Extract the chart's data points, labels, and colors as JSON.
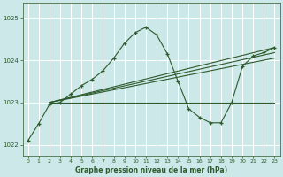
{
  "title": "Graphe pression niveau de la mer (hPa)",
  "bg_color": "#cce8e8",
  "grid_color": "#ffffff",
  "line_color": "#2d5a2d",
  "x_ticks": [
    0,
    1,
    2,
    3,
    4,
    5,
    6,
    7,
    8,
    9,
    10,
    11,
    12,
    13,
    14,
    15,
    16,
    17,
    18,
    19,
    20,
    21,
    22,
    23
  ],
  "y_ticks": [
    1022,
    1023,
    1024,
    1025
  ],
  "ylim": [
    1021.75,
    1025.35
  ],
  "xlim": [
    -0.5,
    23.5
  ],
  "main_x": [
    0,
    1,
    2,
    3,
    4,
    5,
    6,
    7,
    8,
    9,
    10,
    11,
    12,
    13,
    14,
    15,
    16,
    17,
    18,
    19,
    20,
    21,
    22,
    23
  ],
  "main_y": [
    1022.1,
    1022.5,
    1022.95,
    1023.0,
    1023.2,
    1023.4,
    1023.55,
    1023.75,
    1024.05,
    1024.4,
    1024.65,
    1024.78,
    1024.6,
    1024.15,
    1023.5,
    1022.85,
    1022.65,
    1022.52,
    1022.52,
    1023.0,
    1023.85,
    1024.1,
    1024.18,
    1024.3
  ],
  "line1_x": [
    2,
    23
  ],
  "line1_y": [
    1023.0,
    1024.3
  ],
  "line2_x": [
    2,
    23
  ],
  "line2_y": [
    1023.0,
    1024.18
  ],
  "line3_x": [
    2,
    23
  ],
  "line3_y": [
    1023.0,
    1024.05
  ],
  "line4_x": [
    2,
    23
  ],
  "line4_y": [
    1023.0,
    1023.0
  ]
}
